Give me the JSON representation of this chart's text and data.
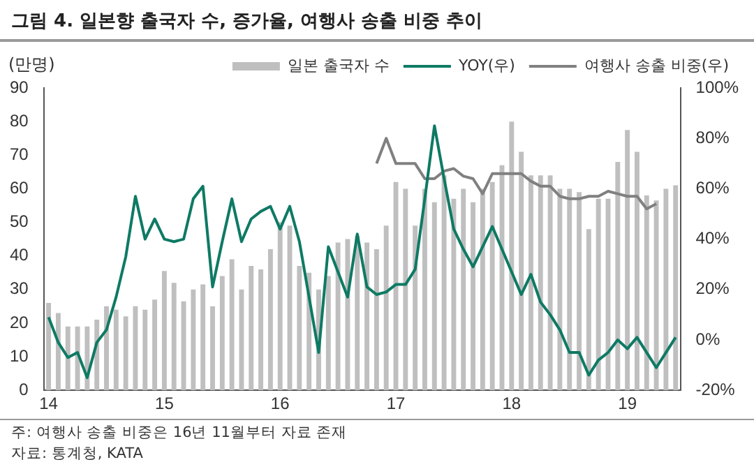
{
  "chart_data": {
    "type": "bar",
    "title": "그림 4. 일본향 출국자 수, 증가율, 여행사 송출 비중 추이",
    "ylabel": "(만명)",
    "annotations": [
      "주: 여행사 송출 비중은 16년 11월부터 자료 존재",
      "자료: 통계청, KATA"
    ],
    "categories": [
      "14",
      null,
      null,
      null,
      null,
      null,
      null,
      null,
      null,
      null,
      null,
      null,
      "15",
      null,
      null,
      null,
      null,
      null,
      null,
      null,
      null,
      null,
      null,
      null,
      "16",
      null,
      null,
      null,
      null,
      null,
      null,
      null,
      null,
      null,
      null,
      null,
      "17",
      null,
      null,
      null,
      null,
      null,
      null,
      null,
      null,
      null,
      null,
      null,
      "18",
      null,
      null,
      null,
      null,
      null,
      null,
      null,
      null,
      null,
      null,
      null,
      "19",
      null,
      null,
      null,
      null,
      null
    ],
    "series": [
      {
        "name": "일본 출국자 수",
        "color": "#bfbfbf",
        "values": [
          26,
          23,
          19,
          19,
          19,
          21,
          25,
          24,
          22,
          25,
          24,
          27,
          35.5,
          32,
          26.5,
          30,
          31.5,
          25,
          34,
          39,
          30,
          37,
          36,
          42,
          50,
          49,
          37,
          35,
          30,
          34,
          44,
          45,
          46,
          44,
          42,
          49,
          62,
          60,
          49,
          60,
          56,
          64,
          57,
          60,
          56,
          60,
          62,
          67,
          80,
          71,
          64,
          64,
          64,
          60,
          60,
          59,
          48,
          57,
          57,
          68,
          77.5,
          71,
          58,
          56.5,
          60,
          61
        ]
      },
      {
        "name": "YOY(우)",
        "type": "line",
        "axis": "y2",
        "color": "#0e7a64",
        "values": [
          9,
          -1,
          -7,
          -5,
          -15,
          -1,
          4,
          17,
          33,
          57,
          40,
          48,
          40,
          39,
          40,
          56,
          61,
          21,
          39,
          56,
          39,
          48,
          51,
          53,
          44,
          53,
          39,
          17,
          -5,
          37,
          27,
          17,
          42,
          21,
          18,
          19,
          22,
          22,
          28,
          56,
          85,
          64,
          44,
          36,
          29,
          37,
          45,
          36,
          27,
          18,
          26,
          15,
          10,
          4,
          -5,
          -5,
          -14,
          -8,
          -5,
          0,
          -3.5,
          1,
          -5,
          -11,
          -5,
          1
        ]
      },
      {
        "name": "여행사 송출 비중(우)",
        "type": "line",
        "axis": "y2",
        "color": "#808080",
        "values": [
          null,
          null,
          null,
          null,
          null,
          null,
          null,
          null,
          null,
          null,
          null,
          null,
          null,
          null,
          null,
          null,
          null,
          null,
          null,
          null,
          null,
          null,
          null,
          null,
          null,
          null,
          null,
          null,
          null,
          null,
          null,
          null,
          null,
          null,
          70,
          80,
          70,
          70,
          70,
          64,
          64,
          67,
          68,
          65,
          64,
          58,
          66,
          66,
          66,
          66,
          63,
          61,
          61,
          57,
          56,
          56,
          57,
          57,
          59,
          58,
          57,
          57,
          52,
          54,
          null,
          null
        ]
      }
    ],
    "ylim": [
      0,
      90
    ],
    "yticks": [
      0,
      10,
      20,
      30,
      40,
      50,
      60,
      70,
      80,
      90
    ],
    "y2lim": [
      -20,
      100
    ],
    "y2ticks": [
      {
        "value": -20,
        "label": "-20%"
      },
      {
        "value": 0,
        "label": "0%"
      },
      {
        "value": 20,
        "label": "20%"
      },
      {
        "value": 40,
        "label": "40%"
      },
      {
        "value": 60,
        "label": "60%"
      },
      {
        "value": 80,
        "label": "80%"
      },
      {
        "value": 100,
        "label": "100%"
      }
    ],
    "grid": false,
    "legend": "top",
    "marker": "none",
    "line_style": "solid"
  }
}
